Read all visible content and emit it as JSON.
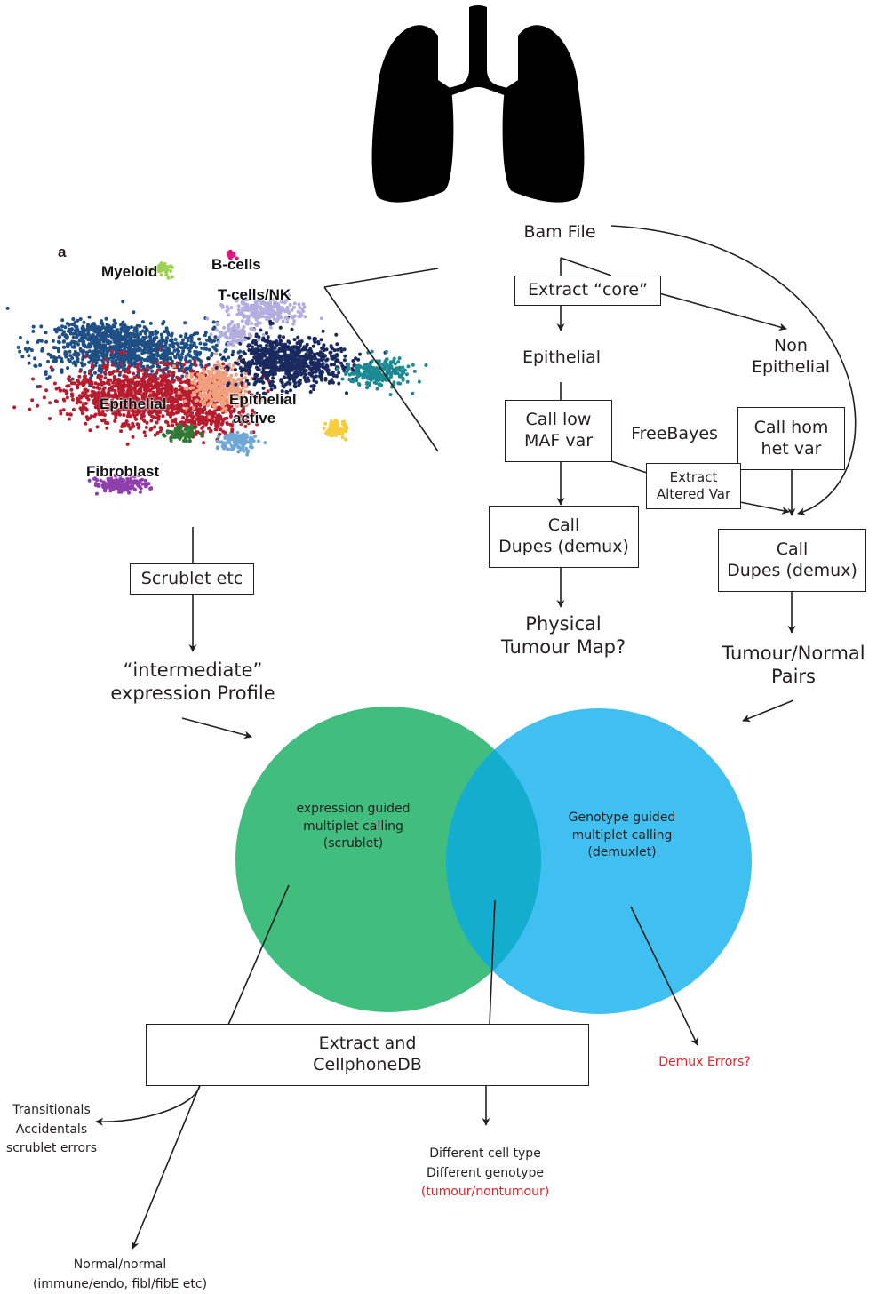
{
  "panel_letter": "a",
  "tsne_clusters": [
    {
      "id": "myeloid",
      "label": "Myeloid",
      "color": "#9bd14f"
    },
    {
      "id": "bcells",
      "label": "B-cells",
      "color": "#e0157e"
    },
    {
      "id": "tcells",
      "label": "T-cells/NK",
      "color": "#b3aee0"
    },
    {
      "id": "epithelial",
      "label": "Epithelial",
      "color": "#b71d2e"
    },
    {
      "id": "epithelial_active",
      "label": "Epithelial active",
      "color": "#f0a07d"
    },
    {
      "id": "fibroblast",
      "label": "Fibroblast",
      "color": "#8f3fab"
    },
    {
      "id": "macrophage",
      "label": "",
      "color": "#1f4f85"
    },
    {
      "id": "tdark",
      "label": "",
      "color": "#1b2a5e"
    },
    {
      "id": "teal",
      "label": "",
      "color": "#1d8a93"
    },
    {
      "id": "yellow",
      "label": "",
      "color": "#f6cd3c"
    },
    {
      "id": "green",
      "label": "",
      "color": "#2f7a34"
    },
    {
      "id": "lightblue",
      "label": "",
      "color": "#6fa7d6"
    }
  ],
  "labels": {
    "epithelial_active_line1": "Epithelial",
    "epithelial_active_line2": "active"
  },
  "flow": {
    "bam_file": "Bam File",
    "extract_core": "Extract “core”",
    "epithelial": "Epithelial",
    "non_epithelial_1": "Non",
    "non_epithelial_2": "Epithelial",
    "call_low_maf_1": "Call low",
    "call_low_maf_2": "MAF var",
    "freebayes": "FreeBayes",
    "call_hom_het_1": "Call hom",
    "call_hom_het_2": "het var",
    "extract_altered_1": "Extract",
    "extract_altered_2": "Altered Var",
    "call_dupes_left_1": "Call",
    "call_dupes_left_2": "Dupes (demux)",
    "call_dupes_right_1": "Call",
    "call_dupes_right_2": "Dupes (demux)",
    "physical_map_1": "Physical",
    "physical_map_2": "Tumour Map?",
    "tumour_normal_1": "Tumour/Normal",
    "tumour_normal_2": "Pairs",
    "scrublet_box": "Scrublet etc",
    "intermediate_1": "“intermediate”",
    "intermediate_2": "expression Profile"
  },
  "venn": {
    "left_1": "expression guided",
    "left_2": "multiplet calling",
    "left_3": "(scrublet)",
    "right_1": "Genotype guided",
    "right_2": "multiplet calling",
    "right_3": "(demuxlet)",
    "left_color": "#41bd7e",
    "right_color": "#40c0f0",
    "overlap_color": "#13adcd"
  },
  "outputs": {
    "extract_cellphone_1": "Extract and",
    "extract_cellphone_2": "CellphoneDB",
    "demux_errors": "Demux Errors?",
    "transitionals": "Transitionals",
    "accidentals": "Accidentals",
    "scrublet_errors": "scrublet errors",
    "diff_cell_type": "Different cell type",
    "diff_genotype": "Different genotype",
    "tumour_nontumour": "(tumour/nontumour)",
    "normal_normal": "Normal/normal",
    "immune_endo": "(immune/endo, fibl/fibE etc)"
  },
  "colors": {
    "ink": "#231f20",
    "highlight": "#e0262a"
  }
}
